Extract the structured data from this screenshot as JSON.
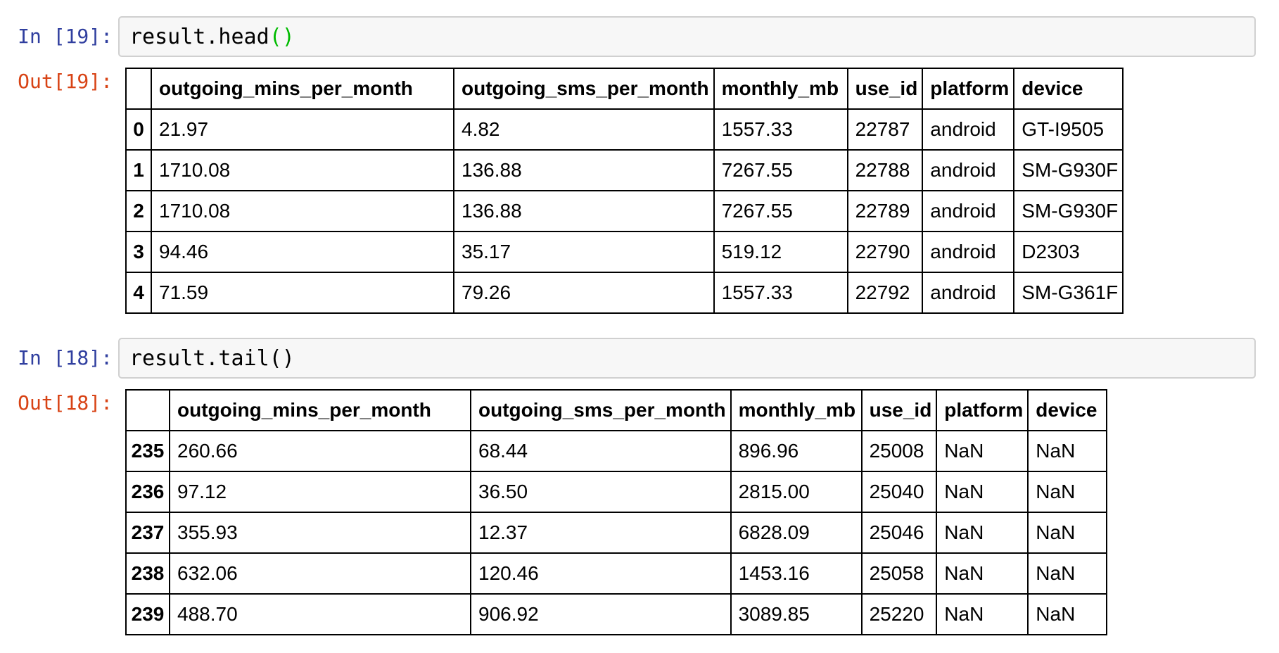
{
  "colors": {
    "input_prompt": "#303F9F",
    "output_prompt": "#D84315",
    "bracket_match": "#00BB00",
    "input_background": "#F7F7F7",
    "input_border": "#D0D0D0",
    "table_border": "#000000"
  },
  "cells": [
    {
      "input_prompt": "In [19]:",
      "output_prompt": "Out[19]:",
      "code_main": "result.head",
      "code_brackets": "()",
      "table": {
        "columns": [
          "",
          "outgoing_mins_per_month",
          "outgoing_sms_per_month",
          "monthly_mb",
          "use_id",
          "platform",
          "device"
        ],
        "rows": [
          [
            "0",
            "21.97",
            "4.82",
            "1557.33",
            "22787",
            "android",
            "GT-I9505"
          ],
          [
            "1",
            "1710.08",
            "136.88",
            "7267.55",
            "22788",
            "android",
            "SM-G930F"
          ],
          [
            "2",
            "1710.08",
            "136.88",
            "7267.55",
            "22789",
            "android",
            "SM-G930F"
          ],
          [
            "3",
            "94.46",
            "35.17",
            "519.12",
            "22790",
            "android",
            "D2303"
          ],
          [
            "4",
            "71.59",
            "79.26",
            "1557.33",
            "22792",
            "android",
            "SM-G361F"
          ]
        ]
      }
    },
    {
      "input_prompt": "In [18]:",
      "output_prompt": "Out[18]:",
      "code_main": "result.tail()",
      "code_brackets": "",
      "table": {
        "columns": [
          "",
          "outgoing_mins_per_month",
          "outgoing_sms_per_month",
          "monthly_mb",
          "use_id",
          "platform",
          "device"
        ],
        "rows": [
          [
            "235",
            "260.66",
            "68.44",
            "896.96",
            "25008",
            "NaN",
            "NaN"
          ],
          [
            "236",
            "97.12",
            "36.50",
            "2815.00",
            "25040",
            "NaN",
            "NaN"
          ],
          [
            "237",
            "355.93",
            "12.37",
            "6828.09",
            "25046",
            "NaN",
            "NaN"
          ],
          [
            "238",
            "632.06",
            "120.46",
            "1453.16",
            "25058",
            "NaN",
            "NaN"
          ],
          [
            "239",
            "488.70",
            "906.92",
            "3089.85",
            "25220",
            "NaN",
            "NaN"
          ]
        ]
      }
    }
  ]
}
